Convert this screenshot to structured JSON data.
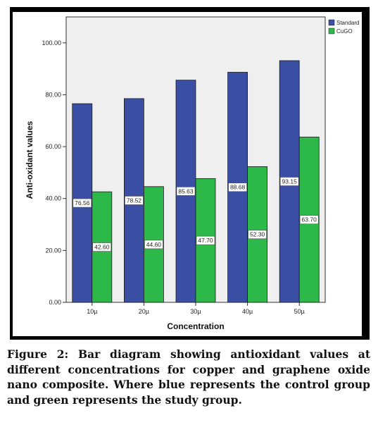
{
  "chart_data": {
    "type": "bar",
    "xlabel": "Concentration",
    "ylabel": "Anti-oxidant values",
    "categories": [
      "10µ",
      "20µ",
      "30µ",
      "40µ",
      "50µ"
    ],
    "series": [
      {
        "name": "Standard",
        "color": "#3a4fa3",
        "values": [
          76.56,
          78.52,
          85.63,
          88.68,
          93.15
        ],
        "labels": [
          "76.56",
          "78.52",
          "85.63",
          "88.68",
          "93.15"
        ]
      },
      {
        "name": "CuGO",
        "color": "#2db84a",
        "values": [
          42.6,
          44.6,
          47.7,
          52.3,
          63.7
        ],
        "labels": [
          "42.60",
          "44.60",
          "47.70",
          "52.30",
          "63.70"
        ]
      }
    ],
    "ylim": [
      0,
      110
    ],
    "yticks": [
      0,
      20,
      40,
      60,
      80,
      100
    ],
    "ytick_labels": [
      "0.00",
      "20.00",
      "40.00",
      "60.00",
      "80.00",
      "100.00"
    ],
    "legend": "top-right",
    "grid": false
  },
  "caption": "Figure 2: Bar diagram showing antioxidant values at different concentrations for copper and graphene oxide nano composite. Where blue represents the control group and green represents the study group."
}
